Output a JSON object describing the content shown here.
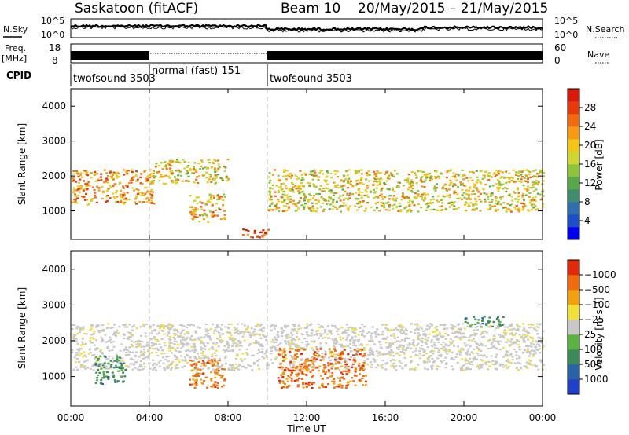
{
  "header": {
    "station": "Saskatoon (fitACF)",
    "beam": "Beam 10",
    "dates": "20/May/2015 – 21/May/2015"
  },
  "top_panel": {
    "left_label": "N.Sky",
    "right_label": "N.Search",
    "tick_hi": "10^5",
    "tick_lo": "10^0"
  },
  "freq_panel": {
    "left_label_1": "Freq.",
    "left_label_2": "[MHz]",
    "left_tick_hi": "18",
    "left_tick_lo": "8",
    "right_label": "Nave",
    "right_tick_hi": "60",
    "right_tick_lo": "0"
  },
  "cpid": {
    "label": "CPID",
    "segments": [
      {
        "start_h": 0,
        "text": "twofsound 3503"
      },
      {
        "start_h": 4,
        "text": "normal (fast) 151"
      },
      {
        "start_h": 10,
        "text": "twofsound 3503"
      }
    ]
  },
  "chart_data": [
    {
      "type": "heatmap",
      "quantity": "Power",
      "ylabel": "Slant Range [km]",
      "ylim": [
        180,
        4500
      ],
      "yticks": [
        "1000",
        "2000",
        "3000",
        "4000"
      ],
      "colorbar": {
        "label": "Power [dB]",
        "ticks": [
          "4",
          "8",
          "12",
          "16",
          "20",
          "24",
          "28"
        ],
        "colors": [
          "#0000ee",
          "#1c4fc8",
          "#2f6fae",
          "#3f8d6a",
          "#58a84a",
          "#8cc43a",
          "#cfd632",
          "#f1c617",
          "#f59a12",
          "#f06a10",
          "#e63a0d",
          "#d81a0a"
        ]
      },
      "features": [
        {
          "start_h": 0.0,
          "end_h": 4.2,
          "range_km": [
            1200,
            2200
          ],
          "power_db": 22
        },
        {
          "start_h": 4.0,
          "end_h": 8.0,
          "range_km": [
            1800,
            2500
          ],
          "power_db": 18
        },
        {
          "start_h": 6.0,
          "end_h": 7.8,
          "range_km": [
            700,
            1500
          ],
          "power_db": 20
        },
        {
          "start_h": 8.5,
          "end_h": 10.0,
          "range_km": [
            250,
            500
          ],
          "power_db": 28
        },
        {
          "start_h": 10.0,
          "end_h": 24.0,
          "range_km": [
            1000,
            2200
          ],
          "power_db": 18
        }
      ]
    },
    {
      "type": "heatmap",
      "quantity": "Velocity",
      "ylabel": "Slant Range [km]",
      "xlabel": "Time UT",
      "xlim": [
        0,
        24
      ],
      "xticks": [
        "00:00",
        "04:00",
        "08:00",
        "12:00",
        "16:00",
        "20:00",
        "00:00"
      ],
      "ylim": [
        180,
        4500
      ],
      "yticks": [
        "1000",
        "2000",
        "3000",
        "4000"
      ],
      "colorbar": {
        "label": "Velocity [m s⁻¹]",
        "ticks": [
          "1000",
          "500",
          "100",
          "25",
          "−25",
          "−100",
          "−500",
          "−1000"
        ],
        "colors": [
          "#2040c8",
          "#2a62a8",
          "#3c8a5a",
          "#5cb240",
          "#c8c8c8",
          "#f2e03a",
          "#f1a010",
          "#ef6a10",
          "#e02a0a"
        ]
      },
      "features": [
        {
          "start_h": 0.0,
          "end_h": 24.0,
          "range_km": [
            1200,
            2500
          ],
          "velocity_ms": 0
        },
        {
          "start_h": 1.2,
          "end_h": 2.8,
          "range_km": [
            800,
            1600
          ],
          "velocity_ms": 300
        },
        {
          "start_h": 6.0,
          "end_h": 7.8,
          "range_km": [
            700,
            1500
          ],
          "velocity_ms": -300
        },
        {
          "start_h": 10.5,
          "end_h": 15.0,
          "range_km": [
            700,
            1800
          ],
          "velocity_ms": -500
        },
        {
          "start_h": 20.0,
          "end_h": 22.0,
          "range_km": [
            2400,
            2700
          ],
          "velocity_ms": 300
        }
      ]
    }
  ]
}
